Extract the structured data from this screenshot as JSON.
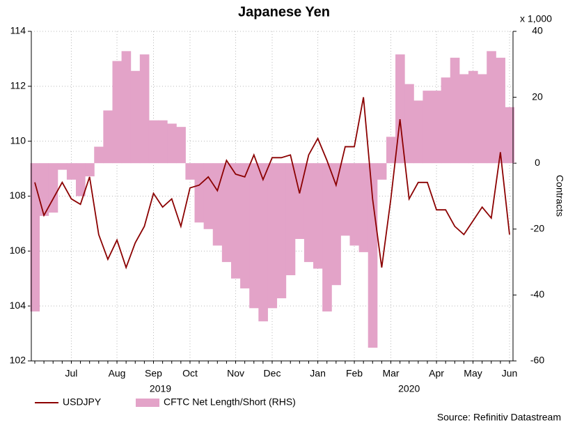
{
  "chart_data": {
    "type": "bar-line",
    "title": "Japanese Yen",
    "y2_unit": "x 1,000",
    "y2label": "Contracts",
    "source": "Source: Refinitiv Datastream",
    "categories": [
      null,
      null,
      null,
      null,
      "Jul",
      null,
      null,
      null,
      null,
      "Aug",
      null,
      null,
      null,
      "Sep",
      null,
      null,
      null,
      "Oct",
      null,
      null,
      null,
      null,
      "Nov",
      null,
      null,
      null,
      "Dec",
      null,
      null,
      null,
      null,
      "Jan",
      null,
      null,
      null,
      "Feb",
      null,
      null,
      null,
      "Mar",
      null,
      null,
      null,
      null,
      "Apr",
      null,
      null,
      null,
      "May",
      null,
      null,
      null,
      "Jun"
    ],
    "years": [
      "2019",
      "2020"
    ],
    "ylim": [
      102,
      114
    ],
    "yticks": [
      102,
      104,
      106,
      108,
      110,
      112,
      114
    ],
    "y2lim": [
      -60,
      40
    ],
    "y2ticks": [
      -60,
      -40,
      -20,
      0,
      20,
      40
    ],
    "grid": true,
    "series": [
      {
        "name": "USDJPY",
        "kind": "line",
        "color": "#8b0000",
        "values": [
          108.5,
          107.3,
          107.9,
          108.5,
          107.9,
          107.7,
          108.7,
          106.6,
          105.7,
          106.4,
          105.4,
          106.3,
          106.9,
          108.1,
          107.6,
          107.9,
          106.9,
          108.3,
          108.4,
          108.7,
          108.2,
          109.3,
          108.8,
          108.7,
          109.5,
          108.6,
          109.4,
          109.4,
          109.5,
          108.1,
          109.5,
          110.1,
          109.3,
          108.4,
          109.8,
          109.8,
          111.6,
          107.9,
          105.4,
          107.9,
          110.8,
          107.9,
          108.5,
          108.5,
          107.5,
          107.5,
          106.9,
          106.6,
          107.1,
          107.6,
          107.2,
          109.6,
          106.6
        ]
      },
      {
        "name": "CFTC Net Length/Short (RHS)",
        "kind": "bar",
        "axis": "y2",
        "color": "#e3a3c8",
        "values": [
          -45,
          -16,
          -15,
          -2,
          -5,
          -10,
          -4,
          5,
          16,
          31,
          34,
          28,
          33,
          13,
          13,
          12,
          11,
          -5,
          -18,
          -20,
          -25,
          -30,
          -35,
          -38,
          -44,
          -48,
          -44,
          -41,
          -34,
          -23,
          -30,
          -32,
          -45,
          -37,
          -22,
          -25,
          -27,
          -56,
          -5,
          8,
          33,
          24,
          19,
          22,
          22,
          26,
          32,
          27,
          28,
          27,
          34,
          32,
          17
        ]
      }
    ]
  }
}
